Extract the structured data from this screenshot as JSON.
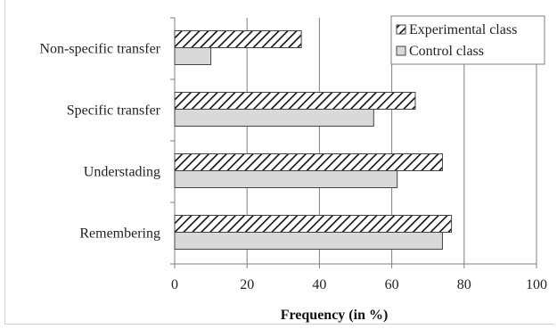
{
  "chart_data": {
    "type": "bar",
    "orientation": "horizontal",
    "categories": [
      "Non-specific transfer",
      "Specific transfer",
      "Understading",
      "Remembering"
    ],
    "series": [
      {
        "name": "Experimental class",
        "values": [
          35,
          66.5,
          74,
          76.5
        ],
        "pattern": "diagonal-hatch"
      },
      {
        "name": "Control class",
        "values": [
          10,
          55,
          61.5,
          74
        ],
        "color": "#d9d9d9"
      }
    ],
    "xlim": [
      0,
      100
    ],
    "xticks": [
      0,
      20,
      40,
      60,
      80,
      100
    ],
    "xlabel": "Frequency (in %)",
    "ylabel": "",
    "title": "",
    "grid": "vertical",
    "legend_position": "top-right"
  }
}
